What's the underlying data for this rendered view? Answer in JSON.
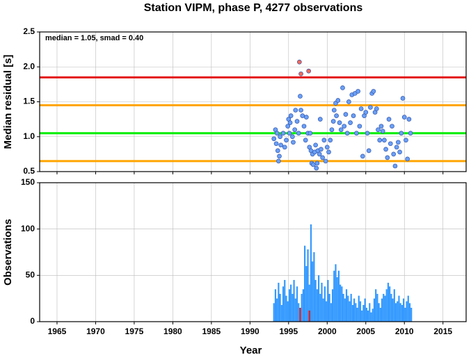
{
  "chart_data": [
    {
      "type": "scatter",
      "title": "Station VIPM, phase P, 4277 observations",
      "ylabel": "Median residual [s]",
      "annotation": "median = 1.05, smad = 0.40",
      "xlim": [
        1962.75,
        2018
      ],
      "xticks": [
        1965,
        1970,
        1975,
        1980,
        1985,
        1990,
        1995,
        2000,
        2005,
        2010,
        2015
      ],
      "ylim": [
        0.5,
        2.5
      ],
      "yticks": [
        0.5,
        {
          "value": 1,
          "label": "1.0"
        },
        1.5,
        {
          "value": 2,
          "label": "2.0"
        },
        2.5
      ],
      "grid": true,
      "hlines": [
        {
          "value": 1.85,
          "color": "#e41a1c"
        },
        {
          "value": 1.45,
          "color": "#ffa500"
        },
        {
          "value": 1.05,
          "color": "#00ee00"
        },
        {
          "value": 0.65,
          "color": "#ffa500"
        }
      ],
      "series": [
        {
          "color": "#6a9ff5",
          "x": [
            1993.1,
            1993.3,
            1993.4,
            1993.5,
            1993.6,
            1993.7,
            1993.8,
            1993.9,
            1994.0,
            1994.3,
            1994.5,
            1994.7,
            1994.9,
            1995.0,
            1995.1,
            1995.2,
            1995.3,
            1995.5,
            1995.6,
            1995.8,
            1995.9,
            1996.1,
            1996.3,
            1996.5,
            1996.6,
            1996.8,
            1997.0,
            1997.2,
            1997.3,
            1997.5,
            1997.7,
            1997.8,
            1997.9,
            1998.0,
            1998.1,
            1998.2,
            1998.4,
            1998.5,
            1998.6,
            1998.7,
            1998.8,
            1999.0,
            1999.1,
            1999.2,
            1999.4,
            1999.6,
            1999.8,
            2000.0,
            2000.2,
            2000.4,
            2000.6,
            2000.8,
            2000.9,
            2001.1,
            2001.2,
            2001.4,
            2001.6,
            2001.8,
            2002.0,
            2002.2,
            2002.4,
            2002.6,
            2002.8,
            2003.0,
            2003.2,
            2003.4,
            2003.6,
            2003.8,
            2004.0,
            2004.2,
            2004.4,
            2004.6,
            2004.8,
            2005.0,
            2005.2,
            2005.4,
            2005.6,
            2005.8,
            2006.0,
            2006.2,
            2006.4,
            2006.6,
            2006.8,
            2007.0,
            2007.2,
            2007.4,
            2007.6,
            2007.8,
            2008.0,
            2008.2,
            2008.4,
            2008.6,
            2008.8,
            2009.0,
            2009.2,
            2009.4,
            2009.6,
            2009.8,
            2010.0,
            2010.2,
            2010.4,
            2010.6,
            2010.8
          ],
          "values": [
            0.97,
            1.1,
            0.9,
            1.05,
            0.8,
            0.65,
            0.72,
            1.0,
            0.88,
            1.05,
            0.85,
            0.95,
            1.15,
            1.25,
            1.05,
            1.2,
            1.3,
            1.0,
            0.92,
            1.1,
            1.38,
            1.22,
            1.05,
            1.58,
            1.38,
            1.3,
            1.15,
            0.95,
            1.28,
            1.05,
            0.85,
            1.05,
            0.8,
            0.62,
            0.75,
            0.6,
            0.78,
            0.88,
            0.55,
            0.62,
            0.8,
            0.75,
            1.25,
            0.82,
            0.7,
            0.95,
            0.65,
            0.85,
            0.78,
            0.95,
            1.1,
            1.22,
            1.38,
            1.48,
            1.3,
            1.52,
            1.2,
            1.1,
            1.7,
            1.15,
            1.32,
            1.05,
            1.5,
            1.2,
            1.6,
            1.3,
            1.62,
            1.05,
            1.65,
            1.15,
            1.4,
            0.72,
            1.3,
            1.35,
            1.05,
            0.8,
            1.42,
            1.62,
            1.65,
            1.35,
            1.4,
            1.1,
            0.95,
            1.15,
            1.08,
            0.95,
            0.82,
            0.7,
            1.25,
            0.9,
            1.15,
            0.75,
            0.58,
            0.85,
            0.92,
            0.78,
            1.05,
            1.55,
            1.28,
            0.95,
            0.68,
            1.25,
            1.05
          ]
        },
        {
          "color": "#f26b5b",
          "x": [
            1996.4,
            1996.6,
            1997.6
          ],
          "values": [
            2.07,
            1.9,
            1.94
          ]
        }
      ]
    },
    {
      "type": "bar",
      "xlabel": "Year",
      "ylabel": "Observations",
      "xlim": [
        1962.75,
        2018
      ],
      "xticks": [
        1965,
        1970,
        1975,
        1980,
        1985,
        1990,
        1995,
        2000,
        2005,
        2010,
        2015
      ],
      "ylim": [
        0,
        150
      ],
      "yticks": [
        0,
        50,
        100,
        150
      ],
      "grid": true,
      "series": [
        {
          "color": "#3399ff",
          "x": [
            1993.0,
            1993.2,
            1993.4,
            1993.6,
            1993.8,
            1994.0,
            1994.2,
            1994.4,
            1994.6,
            1994.8,
            1995.0,
            1995.2,
            1995.4,
            1995.6,
            1995.8,
            1996.0,
            1996.2,
            1996.4,
            1996.6,
            1996.8,
            1997.0,
            1997.2,
            1997.4,
            1997.6,
            1997.8,
            1998.0,
            1998.2,
            1998.4,
            1998.6,
            1998.8,
            1999.0,
            1999.2,
            1999.4,
            1999.6,
            1999.8,
            2000.0,
            2000.2,
            2000.4,
            2000.6,
            2000.8,
            2001.0,
            2001.2,
            2001.4,
            2001.6,
            2001.8,
            2002.0,
            2002.2,
            2002.4,
            2002.6,
            2002.8,
            2003.0,
            2003.2,
            2003.4,
            2003.6,
            2003.8,
            2004.0,
            2004.2,
            2004.4,
            2004.6,
            2004.8,
            2005.0,
            2005.2,
            2005.4,
            2005.6,
            2005.8,
            2006.0,
            2006.2,
            2006.4,
            2006.6,
            2006.8,
            2007.0,
            2007.2,
            2007.4,
            2007.6,
            2007.8,
            2008.0,
            2008.2,
            2008.4,
            2008.6,
            2008.8,
            2009.0,
            2009.2,
            2009.4,
            2009.6,
            2009.8,
            2010.0,
            2010.2,
            2010.4,
            2010.6,
            2010.8
          ],
          "values": [
            20,
            35,
            25,
            42,
            30,
            18,
            38,
            45,
            28,
            22,
            35,
            40,
            30,
            45,
            25,
            38,
            20,
            15,
            30,
            35,
            82,
            60,
            78,
            40,
            105,
            65,
            75,
            45,
            35,
            50,
            30,
            42,
            25,
            38,
            22,
            45,
            30,
            20,
            35,
            55,
            62,
            48,
            55,
            40,
            38,
            30,
            25,
            35,
            28,
            22,
            30,
            18,
            25,
            20,
            15,
            28,
            22,
            12,
            18,
            25,
            15,
            12,
            20,
            10,
            14,
            25,
            35,
            30,
            20,
            15,
            25,
            30,
            28,
            35,
            42,
            38,
            30,
            25,
            35,
            20,
            22,
            28,
            20,
            18,
            25,
            15,
            22,
            28,
            20,
            15
          ]
        },
        {
          "color": "#e41a1c",
          "x": [
            1996.4,
            1997.6
          ],
          "values": [
            15,
            12
          ]
        }
      ]
    }
  ]
}
